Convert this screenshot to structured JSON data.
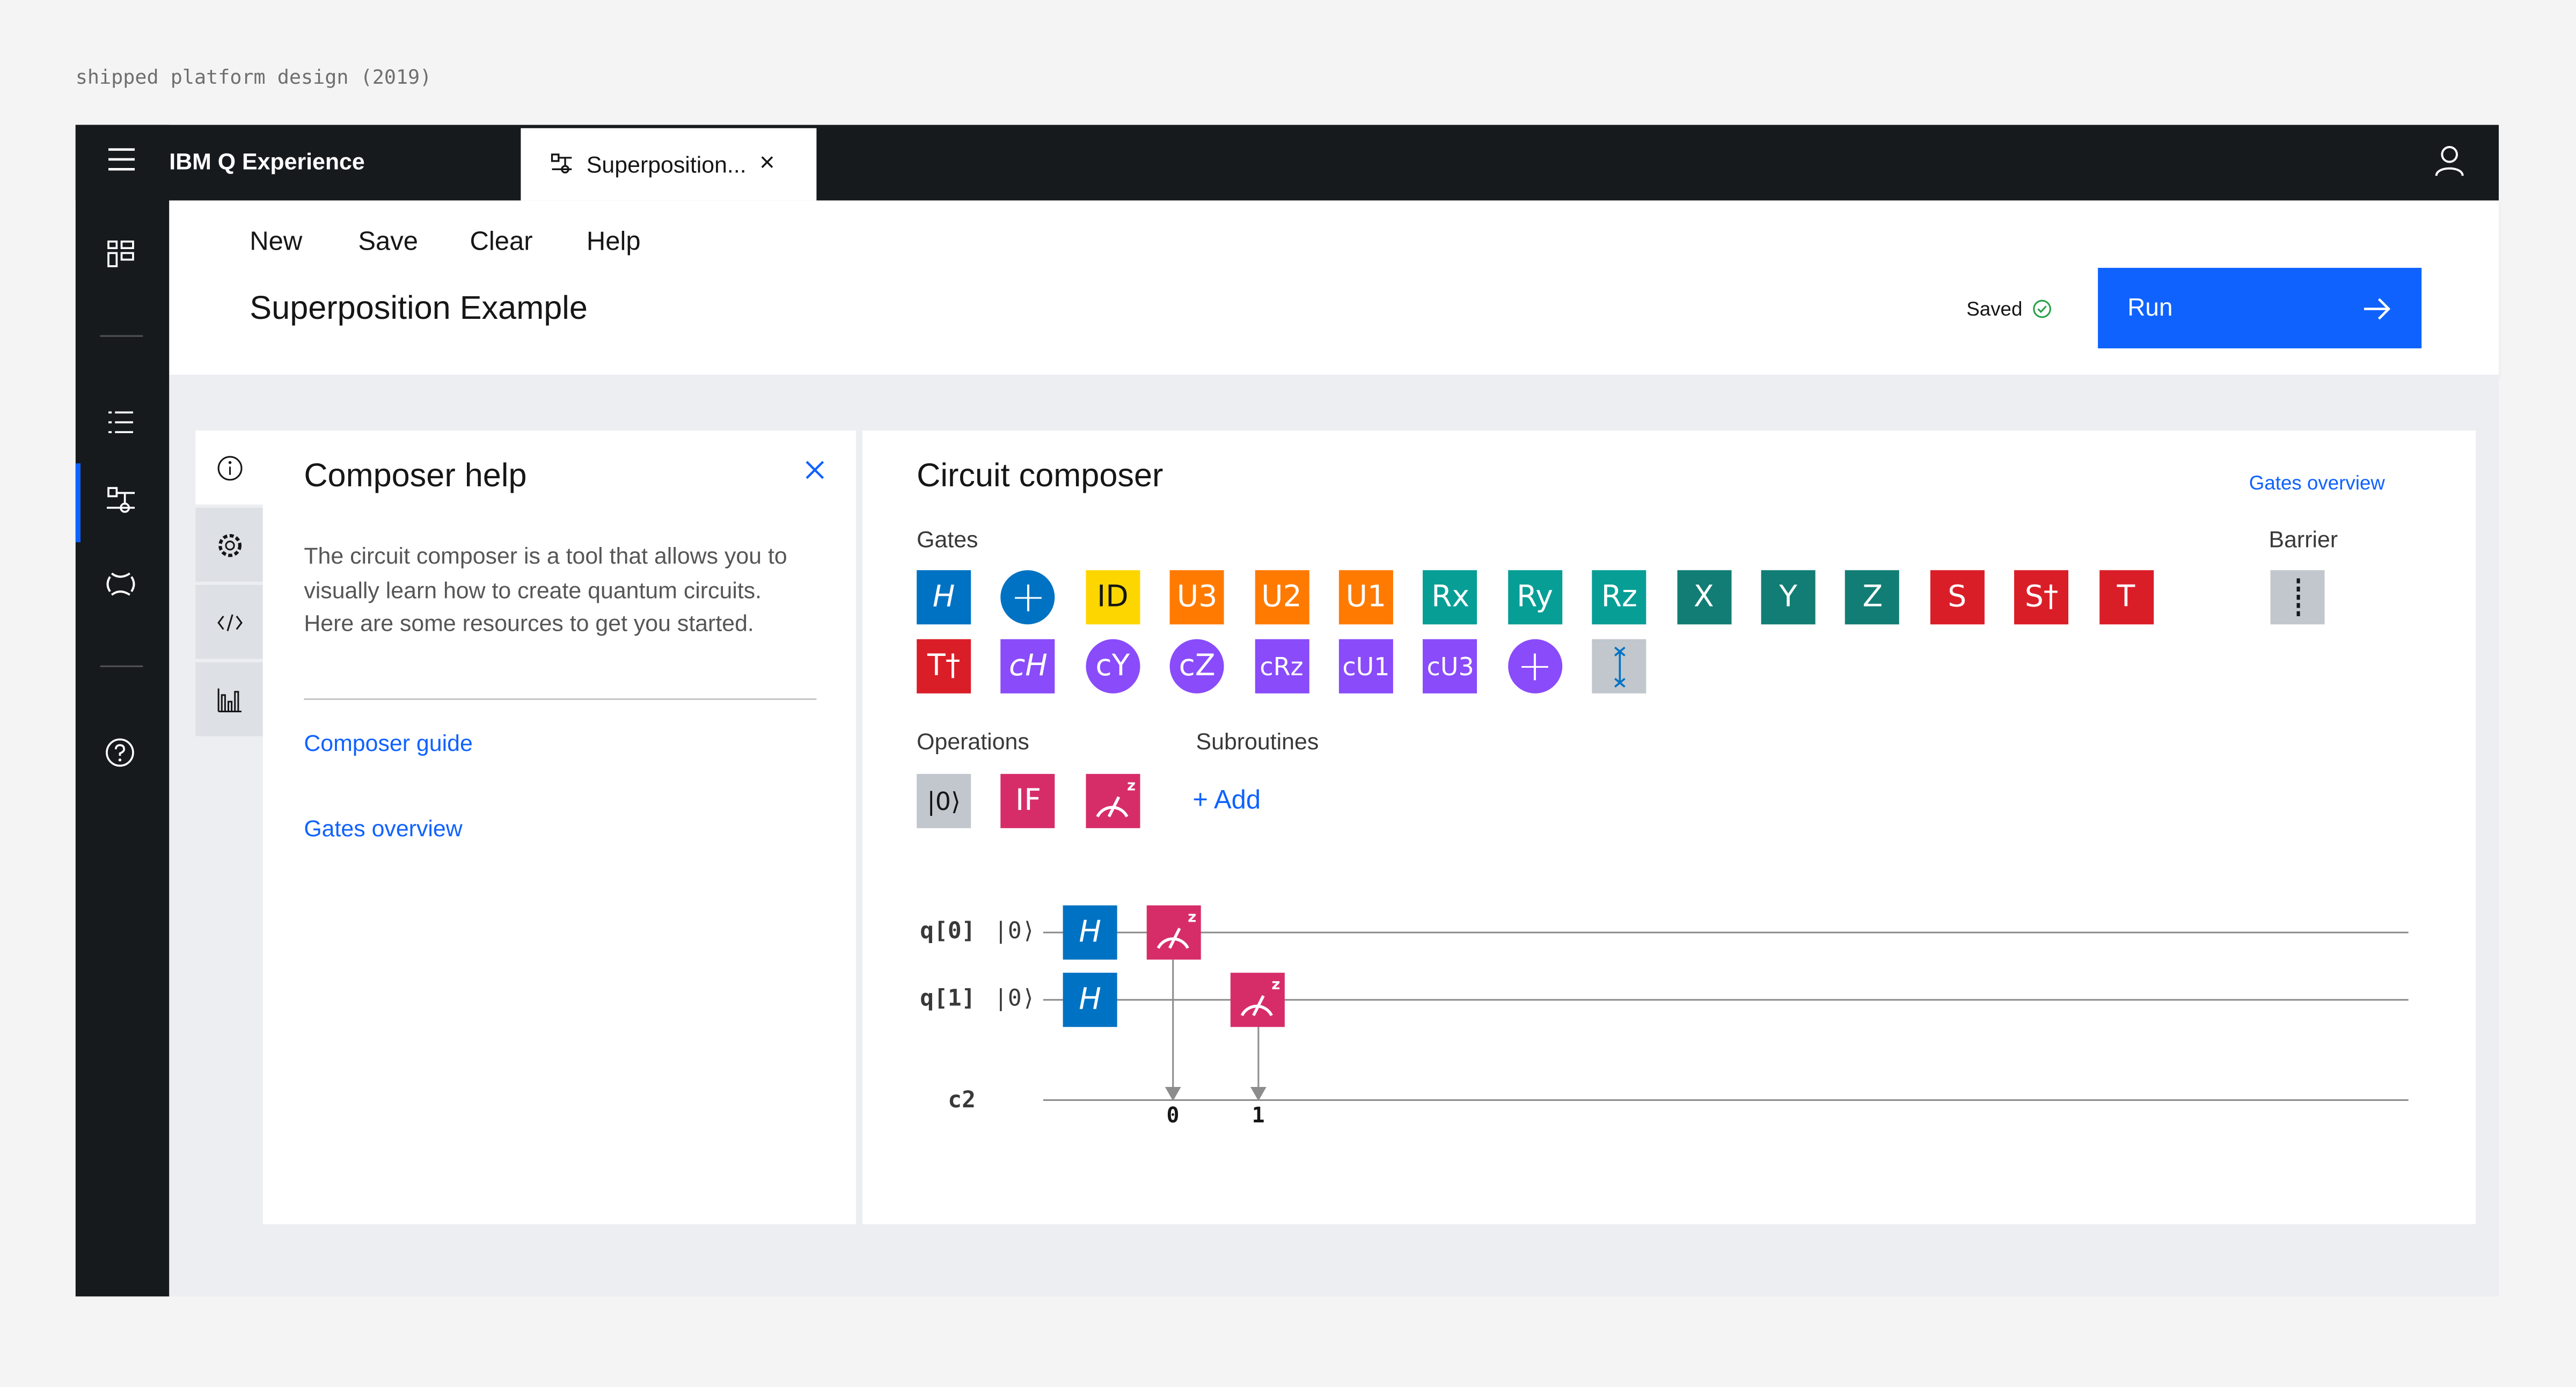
{
  "caption": "shipped platform design (2019)",
  "app": {
    "title": "IBM Q Experience"
  },
  "tab": {
    "label": "Superposition...",
    "close": "×"
  },
  "menu": {
    "items": [
      "New",
      "Save",
      "Clear",
      "Help"
    ]
  },
  "page": {
    "title": "Superposition Example",
    "status": "Saved",
    "run_label": "Run"
  },
  "help": {
    "title": "Composer help",
    "body": "The circuit composer is a tool that allows you to visually learn how to create quantum circuits. Here are some resources to get you started.",
    "links": [
      "Composer guide",
      "Gates overview"
    ]
  },
  "composer": {
    "title": "Circuit composer",
    "gates_overview": "Gates overview",
    "gates_label": "Gates",
    "barrier_label": "Barrier",
    "operations_label": "Operations",
    "subroutines_label": "Subroutines",
    "add_label": "+ Add",
    "gates_row1": [
      {
        "label": "H",
        "color": "#0072c3",
        "shape": "square",
        "italic": true
      },
      {
        "label": "+",
        "color": "#0072c3",
        "shape": "circle"
      },
      {
        "label": "ID",
        "color": "#fdd600",
        "shape": "square",
        "dark": true
      },
      {
        "label": "U3",
        "color": "#ff7a00",
        "shape": "square"
      },
      {
        "label": "U2",
        "color": "#ff7a00",
        "shape": "square"
      },
      {
        "label": "U1",
        "color": "#ff7a00",
        "shape": "square"
      },
      {
        "label": "Rx",
        "color": "#079e96",
        "shape": "square"
      },
      {
        "label": "Ry",
        "color": "#079e96",
        "shape": "square"
      },
      {
        "label": "Rz",
        "color": "#079e96",
        "shape": "square"
      },
      {
        "label": "X",
        "color": "#127d74",
        "shape": "square"
      },
      {
        "label": "Y",
        "color": "#127d74",
        "shape": "square"
      },
      {
        "label": "Z",
        "color": "#127d74",
        "shape": "square"
      },
      {
        "label": "S",
        "color": "#da1e28",
        "shape": "square"
      },
      {
        "label": "S†",
        "color": "#da1e28",
        "shape": "square"
      },
      {
        "label": "T",
        "color": "#da1e28",
        "shape": "square"
      }
    ],
    "gates_row2": [
      {
        "label": "T†",
        "color": "#da1e28",
        "shape": "square"
      },
      {
        "label": "cH",
        "color": "#8a4bfa",
        "shape": "square",
        "italic": true
      },
      {
        "label": "cY",
        "color": "#8a4bfa",
        "shape": "circle"
      },
      {
        "label": "cZ",
        "color": "#8a4bfa",
        "shape": "circle"
      },
      {
        "label": "cRz",
        "color": "#8a4bfa",
        "shape": "square"
      },
      {
        "label": "cU1",
        "color": "#8a4bfa",
        "shape": "square"
      },
      {
        "label": "cU3",
        "color": "#8a4bfa",
        "shape": "square"
      },
      {
        "label": "+",
        "color": "#8a4bfa",
        "shape": "circle"
      },
      {
        "label": "swap",
        "color": "#c1c7cd",
        "shape": "square",
        "icon": "swap-icon"
      }
    ],
    "operations": [
      {
        "label": "|0⟩",
        "color": "#c1c7cd",
        "dark": true
      },
      {
        "label": "IF",
        "color": "#d62d69"
      },
      {
        "label": "measure",
        "color": "#d62d69",
        "icon": "measure-z-icon"
      }
    ],
    "circuit": {
      "qubits": [
        {
          "name": "q[0]",
          "init": "|0⟩"
        },
        {
          "name": "q[1]",
          "init": "|0⟩"
        }
      ],
      "classical": "c2",
      "gate_label": "H",
      "bits": [
        "0",
        "1"
      ]
    }
  }
}
